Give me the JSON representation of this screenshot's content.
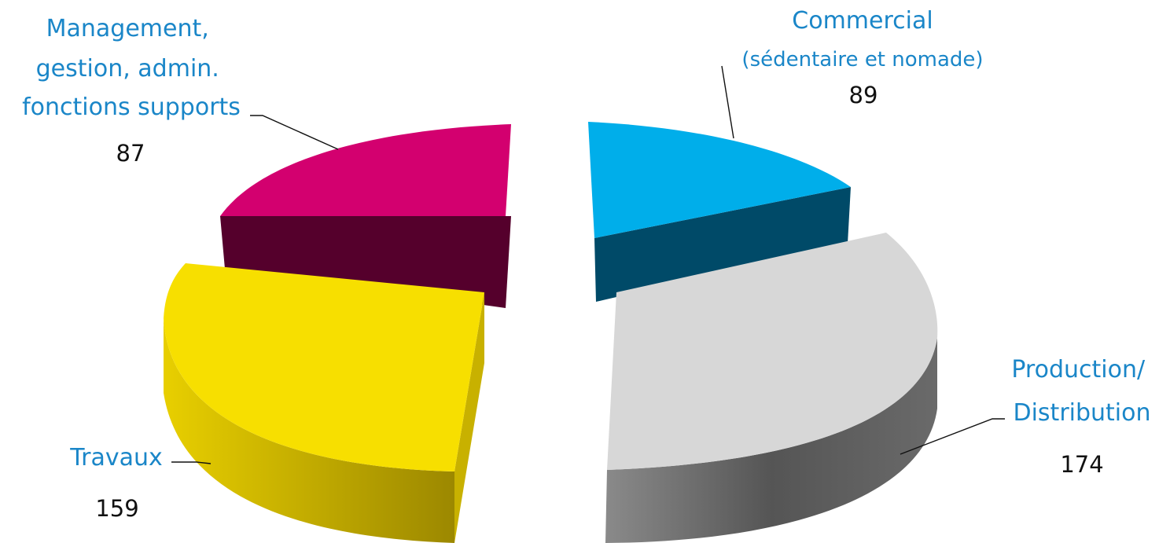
{
  "chart_data": {
    "type": "pie",
    "style": "3d-exploded",
    "slices": [
      {
        "label_lines": [
          "Commercial"
        ],
        "sublabel": "(sédentaire et nomade)",
        "value": 89,
        "value_text": "89",
        "top_color": "#00aeea",
        "side_color": "#004a68"
      },
      {
        "label_lines": [
          "Production/",
          "Distribution"
        ],
        "sublabel": "",
        "value": 174,
        "value_text": "174",
        "top_color": "#d7d7d7",
        "side_color": "#5f5f5f"
      },
      {
        "label_lines": [
          "Travaux"
        ],
        "sublabel": "",
        "value": 159,
        "value_text": "159",
        "top_color": "#f7df00",
        "side_color": "#b9a300"
      },
      {
        "label_lines": [
          "Management,",
          "gestion, admin.",
          "fonctions supports"
        ],
        "sublabel": "",
        "value": 87,
        "value_text": "87",
        "top_color": "#d3006f",
        "side_color": "#55002c"
      }
    ],
    "label_color": "#1a86c8",
    "value_color": "#111111"
  }
}
